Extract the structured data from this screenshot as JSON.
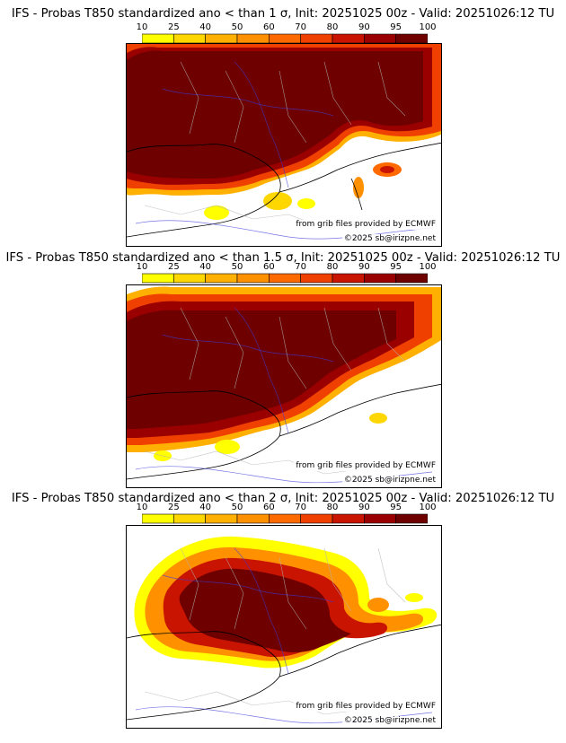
{
  "colorbar": {
    "ticks": [
      "10",
      "25",
      "40",
      "50",
      "60",
      "70",
      "80",
      "90",
      "95",
      "100"
    ],
    "colors": [
      "#ffff00",
      "#ffd700",
      "#ffb000",
      "#ff9000",
      "#ff6a00",
      "#f04000",
      "#c81400",
      "#9a0000",
      "#6e0000"
    ]
  },
  "panels": [
    {
      "title": "IFS - Probas T850  standardized ano < than 1 σ, Init: 20251025 00z - Valid: 20251026:12 TU",
      "credit_source": "from grib files provided by ECMWF",
      "credit_copyright": "©2025 sb@irizpne.net"
    },
    {
      "title": "IFS - Probas T850  standardized ano < than 1.5 σ, Init: 20251025 00z - Valid: 20251026:12 TU",
      "credit_source": "from grib files provided by ECMWF",
      "credit_copyright": "©2025 sb@irizpne.net"
    },
    {
      "title": "IFS - Probas T850  standardized ano < than 2 σ, Init: 20251025 00z - Valid: 20251026:12 TU",
      "credit_source": "from grib files provided by ECMWF",
      "credit_copyright": "©2025 sb@irizpne.net"
    }
  ],
  "map_colors": {
    "land_border": "#000000",
    "admin_lines": "#b4b4b4",
    "rivers": "#3c3cdc"
  }
}
